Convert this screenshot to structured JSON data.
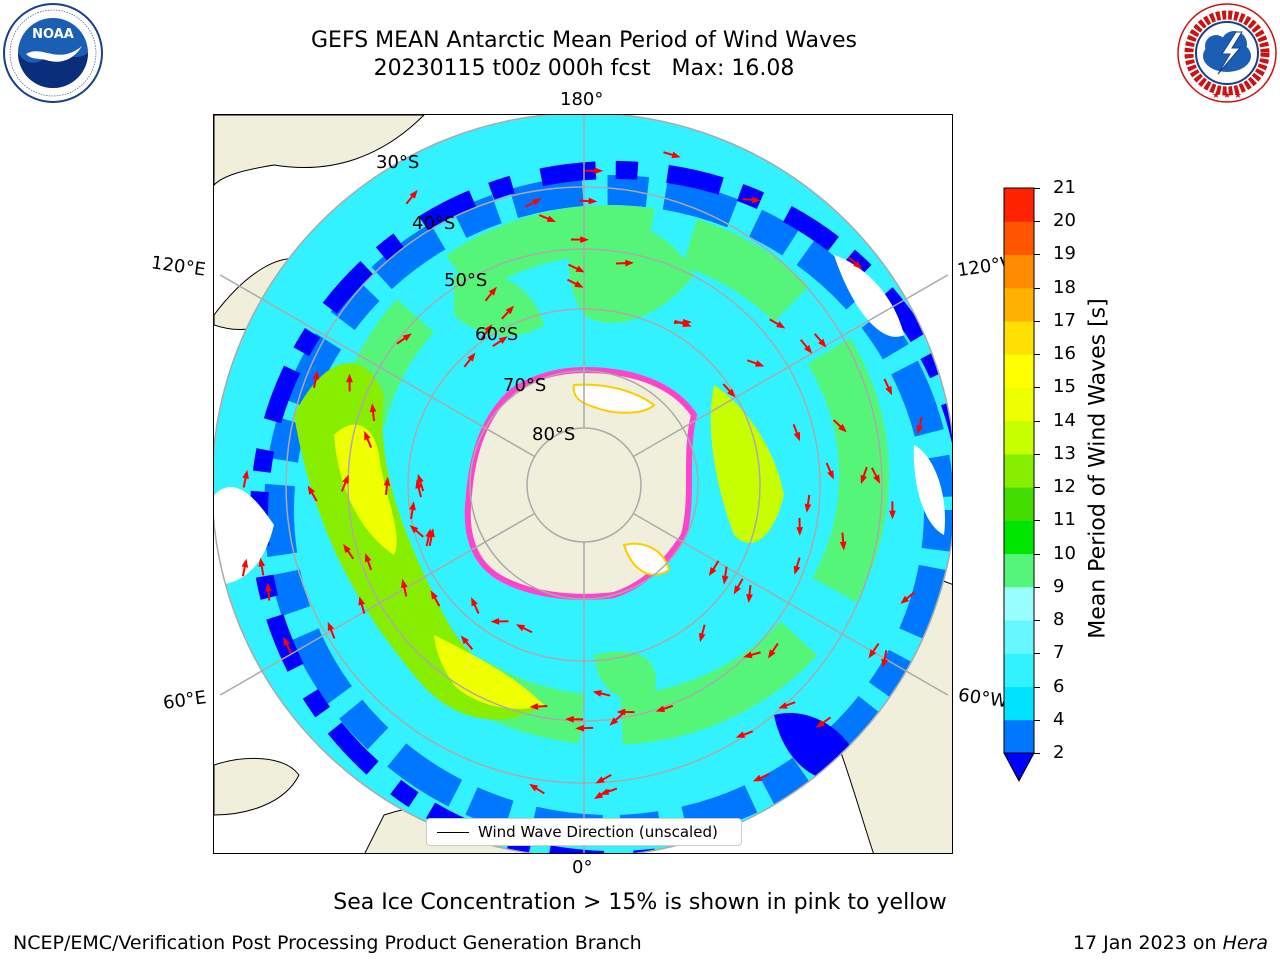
{
  "title": {
    "line1": "GEFS MEAN Antarctic Mean Period of Wind Waves",
    "line2": "20230115 t00z 000h fcst   Max: 16.08"
  },
  "logos": {
    "noaa": {
      "text": "NOAA",
      "ring_text": "NATIONAL OCEANIC AND ATMOSPHERIC ADMINISTRATION · U.S. DEPARTMENT OF COMMERCE"
    },
    "nws": {
      "ring_text": "NATIONAL WEATHER SERVICE"
    }
  },
  "map": {
    "projection": "south-polar stereographic",
    "longitude_labels": {
      "top": "180°",
      "bottom": "0°",
      "upper_left": "120°E",
      "upper_right": "120°W",
      "lower_left": "60°E",
      "lower_right": "60°W"
    },
    "latitude_labels": [
      "30°S",
      "40°S",
      "50°S",
      "60°S",
      "70°S",
      "80°S"
    ],
    "legend_label": "Wind Wave Direction (unscaled)",
    "colors": {
      "land": "#efefdb",
      "open_water": "#ffffff",
      "sea_ice": "#ff44cc",
      "arrows": "#ff0000"
    }
  },
  "colorbar": {
    "label": "Mean Period of Wind Waves [s]",
    "ticks": [
      "2",
      "4",
      "6",
      "7",
      "8",
      "9",
      "10",
      "11",
      "12",
      "13",
      "14",
      "15",
      "16",
      "17",
      "18",
      "19",
      "20",
      "21"
    ],
    "colors": [
      "#0077ff",
      "#00e5ff",
      "#33f2ff",
      "#66f7ff",
      "#99ffff",
      "#55f57a",
      "#00e600",
      "#44dd00",
      "#88ee00",
      "#c8ff00",
      "#eeff00",
      "#ffff00",
      "#ffe000",
      "#ffb000",
      "#ff8c00",
      "#ff5500",
      "#ff2200"
    ],
    "extend": "min",
    "extend_color": "#0000ff"
  },
  "caption": "Sea Ice Concentration > 15% is shown in pink to yellow",
  "footer": {
    "left": "NCEP/EMC/Verification Post Processing Product Generation Branch",
    "right_prefix": "17 Jan 2023 on ",
    "right_machine": "Hera"
  }
}
